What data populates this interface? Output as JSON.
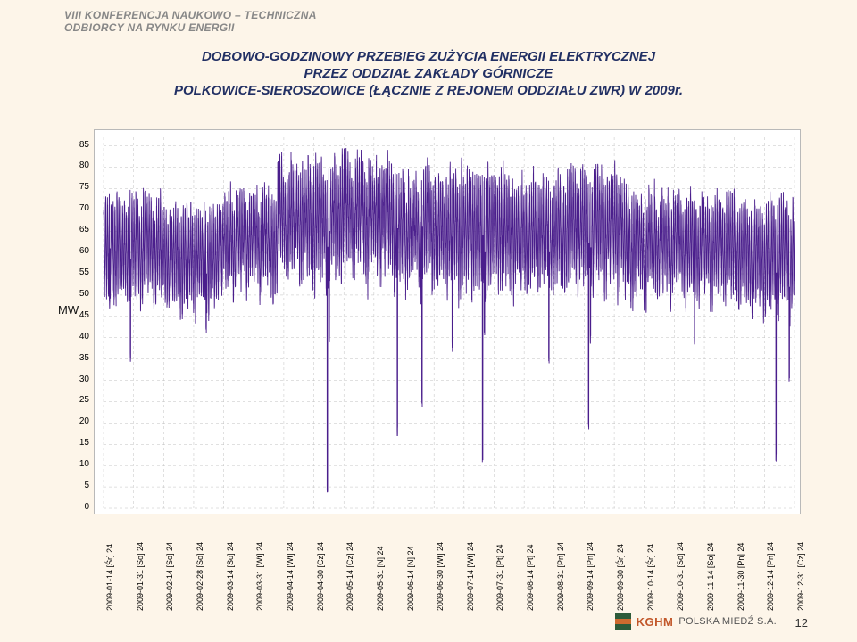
{
  "header_line1": "VIII KONFERENCJA NAUKOWO – TECHNICZNA",
  "header_line2": "ODBIORCY NA RYNKU ENERGII",
  "title_line1": "DOBOWO-GODZINOWY PRZEBIEG ZUŻYCIA ENERGII ELEKTRYCZNEJ",
  "title_line2": "PRZEZ ODDZIAŁ ZAKŁADY GÓRNICZE",
  "title_line3": "POLKOWICE-SIEROSZOWICE (ŁĄCZNIE Z REJONEM ODDZIAŁU ZWR) W 2009r.",
  "y_axis_label": "MW",
  "page_number": "12",
  "footer_brand1": "KGHM",
  "footer_brand2": "POLSKA MIEDŹ S.A.",
  "chart": {
    "type": "line",
    "background_color": "#ffffff",
    "grid_color": "#c0c0c0",
    "series_color": "#4a1e8c",
    "line_width": 0.9,
    "ylim_min": 0,
    "ylim_max": 87,
    "ytick_start": 0,
    "ytick_step": 5,
    "ytick_end": 85,
    "x_categories": [
      "2009-01-14 [Śr] 24",
      "2009-01-31 [So] 24",
      "2009-02-14 [So] 24",
      "2009-02-28 [So] 24",
      "2009-03-14 [So] 24",
      "2009-03-31 [Wt] 24",
      "2009-04-14 [Wt] 24",
      "2009-04-30 [Cz] 24",
      "2009-05-14 [Cz] 24",
      "2009-05-31 [N] 24",
      "2009-06-14 [N] 24",
      "2009-06-30 [Wt] 24",
      "2009-07-14 [Wt] 24",
      "2009-07-31 [Pt] 24",
      "2009-08-14 [Pt] 24",
      "2009-08-31 [Pn] 24",
      "2009-09-14 [Pn] 24",
      "2009-09-30 [Śr] 24",
      "2009-10-14 [Śr] 24",
      "2009-10-31 [So] 24",
      "2009-11-14 [So] 24",
      "2009-11-30 [Pn] 24",
      "2009-12-14 [Pn] 24",
      "2009-12-31 [Cz] 24"
    ],
    "monthly_profile": [
      {
        "low": 52,
        "high": 72,
        "noise": 4
      },
      {
        "low": 50,
        "high": 70,
        "noise": 4
      },
      {
        "low": 54,
        "high": 73,
        "noise": 5
      },
      {
        "low": 58,
        "high": 80,
        "noise": 6
      },
      {
        "low": 58,
        "high": 80,
        "noise": 6
      },
      {
        "low": 56,
        "high": 77,
        "noise": 6
      },
      {
        "low": 55,
        "high": 78,
        "noise": 5
      },
      {
        "low": 55,
        "high": 76,
        "noise": 5
      },
      {
        "low": 56,
        "high": 78,
        "noise": 5
      },
      {
        "low": 53,
        "high": 73,
        "noise": 5
      },
      {
        "low": 52,
        "high": 72,
        "noise": 4
      },
      {
        "low": 50,
        "high": 71,
        "noise": 4
      }
    ],
    "anomalous_dips": [
      {
        "day": 3,
        "val": 48
      },
      {
        "day": 14,
        "val": 35
      },
      {
        "day": 54,
        "val": 42
      },
      {
        "day": 118,
        "val": 5
      },
      {
        "day": 119,
        "val": 40
      },
      {
        "day": 155,
        "val": 18
      },
      {
        "day": 168,
        "val": 25
      },
      {
        "day": 184,
        "val": 38
      },
      {
        "day": 200,
        "val": 12
      },
      {
        "day": 201,
        "val": 42
      },
      {
        "day": 235,
        "val": 35
      },
      {
        "day": 256,
        "val": 20
      },
      {
        "day": 257,
        "val": 40
      },
      {
        "day": 312,
        "val": 38
      },
      {
        "day": 355,
        "val": 12
      },
      {
        "day": 362,
        "val": 30
      }
    ],
    "days_in_year": 365,
    "hours_per_day": 24
  }
}
